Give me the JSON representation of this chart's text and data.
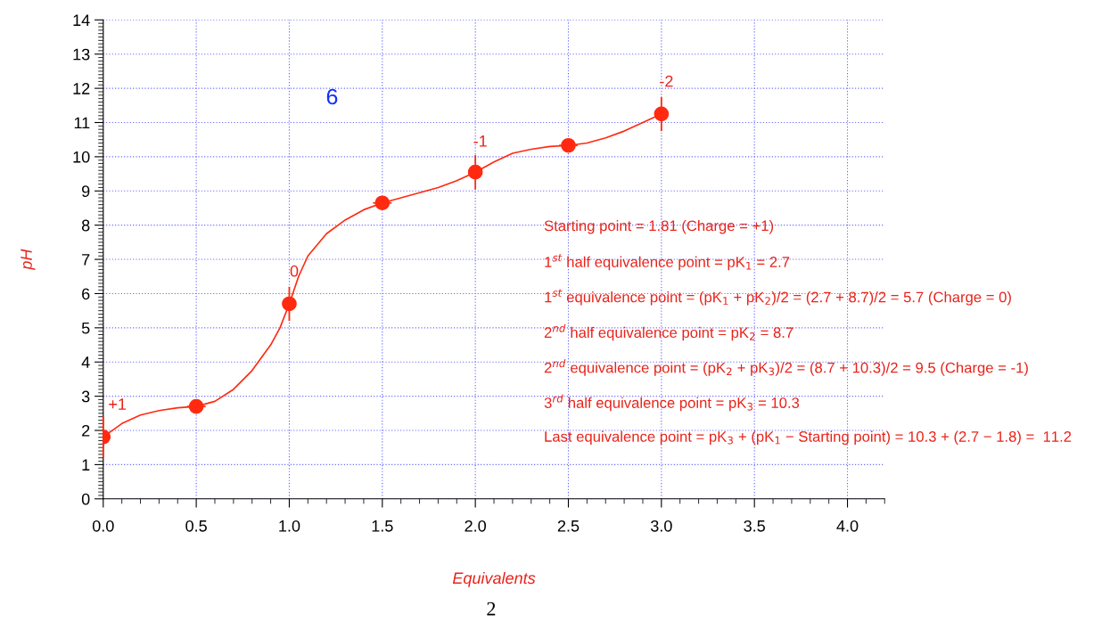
{
  "chart_data": {
    "type": "line",
    "xlabel": "Equivalents",
    "ylabel": "pH",
    "x": [
      0,
      0.5,
      1,
      1.5,
      2,
      2.5,
      3
    ],
    "series": [
      {
        "type": "scatter",
        "color": "#ff2a10",
        "values": [
          1.81,
          2.7,
          5.7,
          8.65,
          9.55,
          10.33,
          11.25
        ],
        "errors": [
          0.6,
          null,
          0.5,
          null,
          0.5,
          null,
          0.5
        ],
        "xerrors": [
          null,
          0.05,
          null,
          0.05,
          null,
          0.05,
          null
        ]
      },
      {
        "color": "#ff2a10",
        "x": [
          0,
          0.1,
          0.2,
          0.3,
          0.4,
          0.5,
          0.6,
          0.7,
          0.8,
          0.9,
          0.95,
          1.0,
          1.05,
          1.1,
          1.2,
          1.3,
          1.4,
          1.5,
          1.6,
          1.7,
          1.8,
          1.9,
          2.0,
          2.1,
          2.2,
          2.3,
          2.4,
          2.5,
          2.6,
          2.7,
          2.8,
          2.9,
          3.0
        ],
        "values": [
          1.81,
          2.2,
          2.45,
          2.58,
          2.66,
          2.7,
          2.85,
          3.2,
          3.75,
          4.5,
          5.0,
          5.7,
          6.5,
          7.1,
          7.75,
          8.15,
          8.45,
          8.65,
          8.8,
          8.95,
          9.1,
          9.3,
          9.55,
          9.85,
          10.1,
          10.22,
          10.3,
          10.33,
          10.4,
          10.55,
          10.75,
          11.0,
          11.25
        ]
      }
    ],
    "line_style": "solid",
    "grid": true,
    "legend": false,
    "xlim": [
      0,
      4.2
    ],
    "ylim": [
      0,
      14
    ],
    "xticks": [
      {
        "value": 0,
        "label": "0.0"
      },
      {
        "value": 0.5,
        "label": "0.5"
      },
      {
        "value": 1,
        "label": "1.0"
      },
      {
        "value": 1.5,
        "label": "1.5"
      },
      {
        "value": 2,
        "label": "2.0"
      },
      {
        "value": 2.5,
        "label": "2.5"
      },
      {
        "value": 3,
        "label": "3.0"
      },
      {
        "value": 3.5,
        "label": "3.5"
      },
      {
        "value": 4,
        "label": "4.0"
      }
    ],
    "yticks": [
      0,
      1,
      2,
      3,
      4,
      5,
      6,
      7,
      8,
      9,
      10,
      11,
      12,
      13,
      14
    ],
    "annotations": [
      {
        "text": "+1",
        "x": 0,
        "y": 1.81
      },
      {
        "text": "0",
        "x": 1,
        "y": 5.7
      },
      {
        "text": "-1",
        "x": 2,
        "y": 9.5
      },
      {
        "text": "-2",
        "x": 3,
        "y": 11.25
      },
      "6",
      "2",
      "Starting point = 1.81 (Charge = +1)",
      "1$^{st}$ half equivalence point = pK$_{1}$ = 2.7",
      "1$^{st}$ equivalence point = (pK$_{1}$ + pK$_{2}$)/2 = (2.7 + 8.7)/2 = 5.7 (Charge = 0)",
      "2$^{nd}$ half equivalence point = pK$_{2}$ = 8.7",
      "2$^{nd}$ equivalence point = (pK$_{2}$ + pK$_{3}$)/2 = (8.7 + 10.3)/2 = 9.5 (Charge = -1)",
      "3$^{rd}$ half equivalence point = pK$_{3}$ = 10.3",
      "Last equivalence point = pK$_{3}$ + (pK$_{1}$ − Starting point) = 10.3 + (2.7 − 1.8) =  11.2"
    ]
  }
}
